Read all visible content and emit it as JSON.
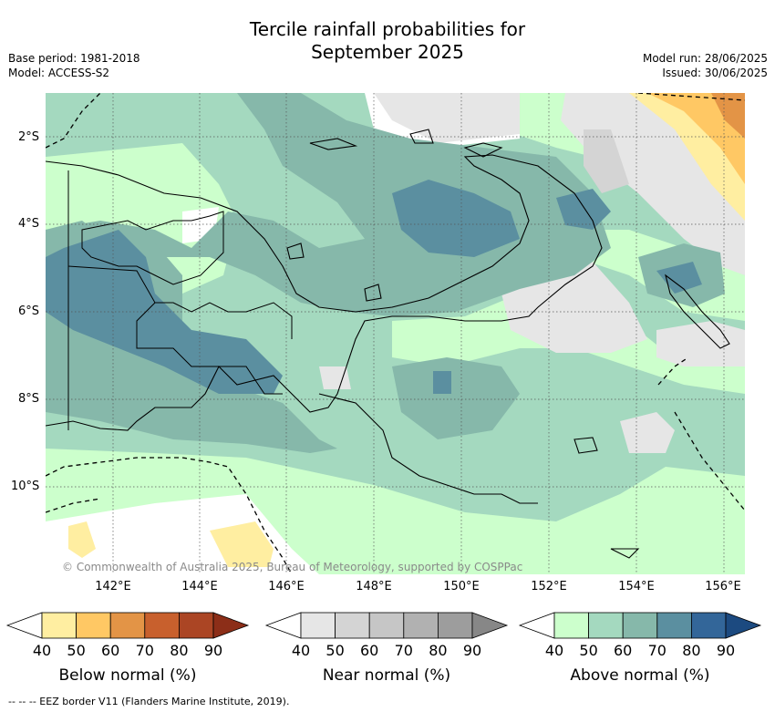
{
  "title": {
    "line1": "Tercile rainfall probabilities for",
    "line2": "September 2025"
  },
  "meta": {
    "base_period": "Base period: 1981-2018",
    "model": "Model: ACCESS-S2",
    "model_run": "Model run: 28/06/2025",
    "issued": "Issued: 30/06/2025"
  },
  "axes": {
    "lat_labels": [
      "2°S",
      "4°S",
      "6°S",
      "8°S",
      "10°S"
    ],
    "lon_labels": [
      "142°E",
      "144°E",
      "146°E",
      "148°E",
      "150°E",
      "152°E",
      "154°E",
      "156°E"
    ]
  },
  "copyright": "© Commonwealth of Australia 2025, Bureau of Meteorology, supported by COSPPac",
  "legends": [
    {
      "title": "Below normal (%)",
      "ticks": [
        "40",
        "50",
        "60",
        "70",
        "80",
        "90"
      ],
      "colors": [
        "#ffffff",
        "#ffeea1",
        "#ffc864",
        "#e39446",
        "#c8602d",
        "#ab4524",
        "#8c2e18"
      ]
    },
    {
      "title": "Near normal (%)",
      "ticks": [
        "40",
        "50",
        "60",
        "70",
        "80",
        "90"
      ],
      "colors": [
        "#ffffff",
        "#e6e6e6",
        "#d4d4d4",
        "#c6c6c6",
        "#b1b1b1",
        "#9d9d9d",
        "#878787"
      ]
    },
    {
      "title": "Above normal (%)",
      "ticks": [
        "40",
        "50",
        "60",
        "70",
        "80",
        "90"
      ],
      "colors": [
        "#ffffff",
        "#ccffcc",
        "#a4d9bf",
        "#86b8aa",
        "#5b8fa0",
        "#336699",
        "#1c4a80"
      ]
    }
  ],
  "footer": "--  --  -- EEZ border V11 (Flanders Marine Institute, 2019)."
}
